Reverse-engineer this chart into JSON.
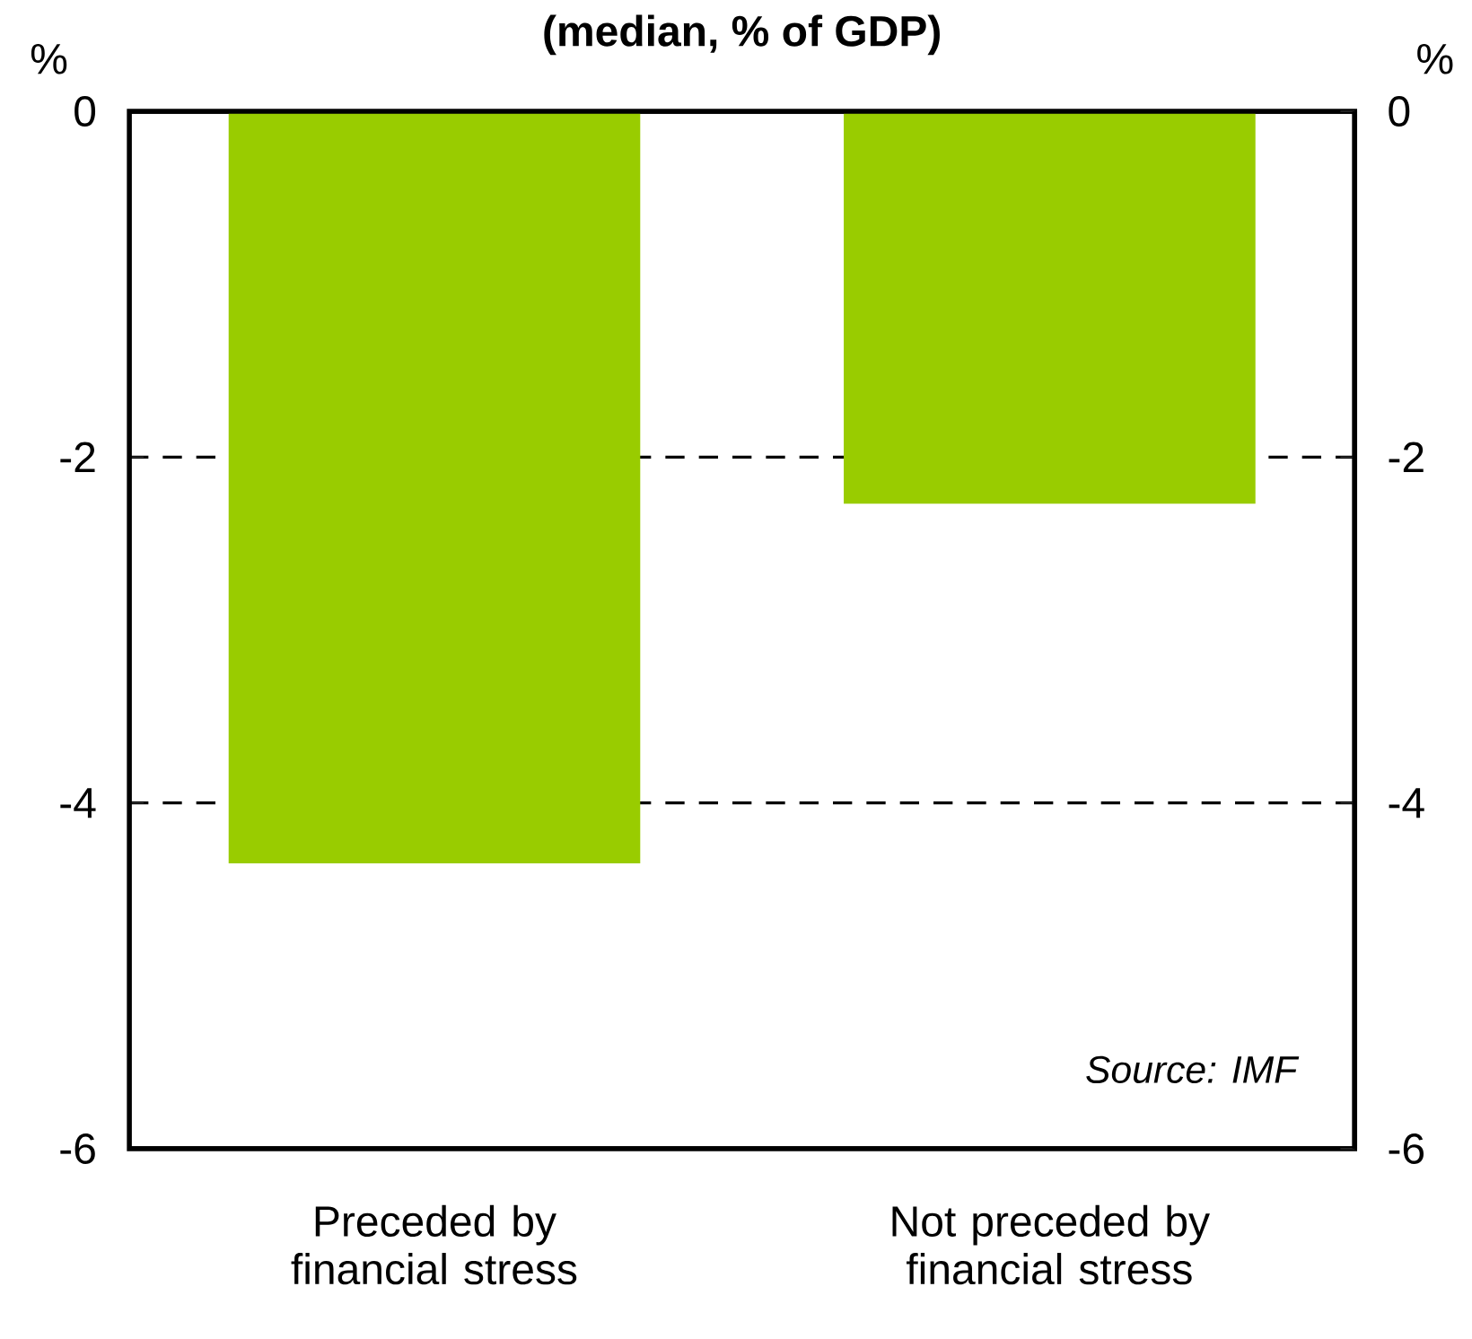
{
  "chart_data": {
    "type": "bar",
    "title": "(median, % of GDP)",
    "ylabel": "%",
    "y2label": "%",
    "categories": [
      "Preceded by financial stress",
      "Not preceded by financial stress"
    ],
    "values": [
      -4.35,
      -2.27
    ],
    "color": "#99cc00",
    "ylim": [
      -6,
      0
    ],
    "yticks": [
      -6,
      -4,
      -2,
      0
    ],
    "y2lim": [
      -6,
      0
    ],
    "y2ticks": [
      -6,
      -4,
      -2,
      0
    ],
    "grid": "y",
    "annotations": [
      "Source: IMF"
    ]
  }
}
